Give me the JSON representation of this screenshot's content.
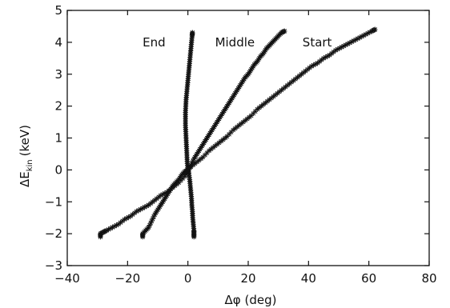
{
  "chart_data": {
    "type": "scatter",
    "title": "",
    "xlabel": "Δφ (deg)",
    "ylabel_main": "ΔE",
    "ylabel_sub": "kin",
    "ylabel_unit": "(keV)",
    "xlim": [
      -40,
      80
    ],
    "ylim": [
      -3,
      5
    ],
    "xticks": [
      -40,
      -20,
      0,
      20,
      40,
      60,
      80
    ],
    "yticks": [
      -3,
      -2,
      -1,
      0,
      1,
      2,
      3,
      4,
      5
    ],
    "grid": false,
    "marker": "star",
    "color": "#111111",
    "annotations": [
      {
        "text": "End",
        "x": -15,
        "y": 4.0
      },
      {
        "text": "Middle",
        "x": 9,
        "y": 4.0
      },
      {
        "text": "Start",
        "x": 38,
        "y": 4.0
      }
    ],
    "series": [
      {
        "points": [
          [
            -29,
            -2.1
          ],
          [
            -29,
            -2.0
          ],
          [
            -28,
            -1.95
          ],
          [
            -27,
            -1.9
          ],
          [
            -25,
            -1.8
          ],
          [
            -23,
            -1.7
          ],
          [
            -21,
            -1.55
          ],
          [
            -19,
            -1.45
          ],
          [
            -17,
            -1.3
          ],
          [
            -15,
            -1.2
          ],
          [
            -13,
            -1.1
          ],
          [
            -11,
            -0.95
          ],
          [
            -9,
            -0.8
          ],
          [
            -7,
            -0.7
          ],
          [
            -5,
            -0.55
          ],
          [
            -3,
            -0.4
          ],
          [
            -1,
            -0.2
          ],
          [
            0,
            0
          ],
          [
            1,
            0.1
          ],
          [
            3,
            0.25
          ],
          [
            5,
            0.4
          ],
          [
            7,
            0.6
          ],
          [
            9,
            0.75
          ],
          [
            11,
            0.9
          ],
          [
            13,
            1.05
          ],
          [
            15,
            1.25
          ],
          [
            17,
            1.4
          ],
          [
            19,
            1.55
          ],
          [
            21,
            1.7
          ],
          [
            23,
            1.9
          ],
          [
            25,
            2.05
          ],
          [
            27,
            2.2
          ],
          [
            29,
            2.35
          ],
          [
            31,
            2.5
          ],
          [
            33,
            2.65
          ],
          [
            35,
            2.8
          ],
          [
            37,
            2.95
          ],
          [
            39,
            3.1
          ],
          [
            41,
            3.25
          ],
          [
            43,
            3.35
          ],
          [
            45,
            3.5
          ],
          [
            47,
            3.6
          ],
          [
            49,
            3.75
          ],
          [
            51,
            3.85
          ],
          [
            53,
            3.95
          ],
          [
            55,
            4.05
          ],
          [
            57,
            4.15
          ],
          [
            59,
            4.25
          ],
          [
            61,
            4.35
          ],
          [
            62,
            4.4
          ]
        ]
      },
      {
        "points": [
          [
            -15,
            -2.1
          ],
          [
            -15,
            -2.0
          ],
          [
            -14,
            -1.9
          ],
          [
            -13,
            -1.8
          ],
          [
            -12,
            -1.6
          ],
          [
            -11,
            -1.4
          ],
          [
            -10,
            -1.25
          ],
          [
            -9,
            -1.1
          ],
          [
            -8,
            -0.95
          ],
          [
            -7,
            -0.8
          ],
          [
            -6,
            -0.65
          ],
          [
            -5,
            -0.5
          ],
          [
            -4,
            -0.4
          ],
          [
            -3,
            -0.3
          ],
          [
            -2,
            -0.15
          ],
          [
            -1,
            -0.05
          ],
          [
            0,
            0
          ],
          [
            1,
            0.15
          ],
          [
            2,
            0.35
          ],
          [
            3,
            0.5
          ],
          [
            4,
            0.65
          ],
          [
            5,
            0.8
          ],
          [
            6,
            0.95
          ],
          [
            7,
            1.1
          ],
          [
            8,
            1.25
          ],
          [
            9,
            1.4
          ],
          [
            10,
            1.55
          ],
          [
            11,
            1.7
          ],
          [
            12,
            1.85
          ],
          [
            13,
            2.0
          ],
          [
            14,
            2.15
          ],
          [
            15,
            2.3
          ],
          [
            16,
            2.45
          ],
          [
            17,
            2.6
          ],
          [
            18,
            2.75
          ],
          [
            19,
            2.9
          ],
          [
            20,
            3.0
          ],
          [
            21,
            3.15
          ],
          [
            22,
            3.3
          ],
          [
            23,
            3.4
          ],
          [
            24,
            3.55
          ],
          [
            25,
            3.65
          ],
          [
            26,
            3.8
          ],
          [
            27,
            3.9
          ],
          [
            28,
            4.0
          ],
          [
            29,
            4.1
          ],
          [
            30,
            4.2
          ],
          [
            31,
            4.3
          ],
          [
            32,
            4.35
          ]
        ]
      },
      {
        "points": [
          [
            2,
            -2.1
          ],
          [
            2,
            -2.0
          ],
          [
            2,
            -1.9
          ],
          [
            1.8,
            -1.7
          ],
          [
            1.6,
            -1.5
          ],
          [
            1.5,
            -1.3
          ],
          [
            1.3,
            -1.1
          ],
          [
            1.2,
            -0.9
          ],
          [
            1,
            -0.7
          ],
          [
            0.8,
            -0.5
          ],
          [
            0.6,
            -0.3
          ],
          [
            0.3,
            -0.1
          ],
          [
            0,
            0
          ],
          [
            -0.2,
            0.2
          ],
          [
            -0.3,
            0.4
          ],
          [
            -0.4,
            0.6
          ],
          [
            -0.5,
            0.8
          ],
          [
            -0.6,
            1.0
          ],
          [
            -0.7,
            1.2
          ],
          [
            -0.8,
            1.4
          ],
          [
            -0.8,
            1.6
          ],
          [
            -0.8,
            1.8
          ],
          [
            -0.7,
            2.0
          ],
          [
            -0.6,
            2.2
          ],
          [
            -0.4,
            2.4
          ],
          [
            -0.2,
            2.6
          ],
          [
            0,
            2.8
          ],
          [
            0.2,
            3.0
          ],
          [
            0.4,
            3.2
          ],
          [
            0.6,
            3.4
          ],
          [
            0.8,
            3.6
          ],
          [
            1,
            3.8
          ],
          [
            1.2,
            4.0
          ],
          [
            1.4,
            4.2
          ],
          [
            1.5,
            4.3
          ]
        ]
      }
    ]
  }
}
